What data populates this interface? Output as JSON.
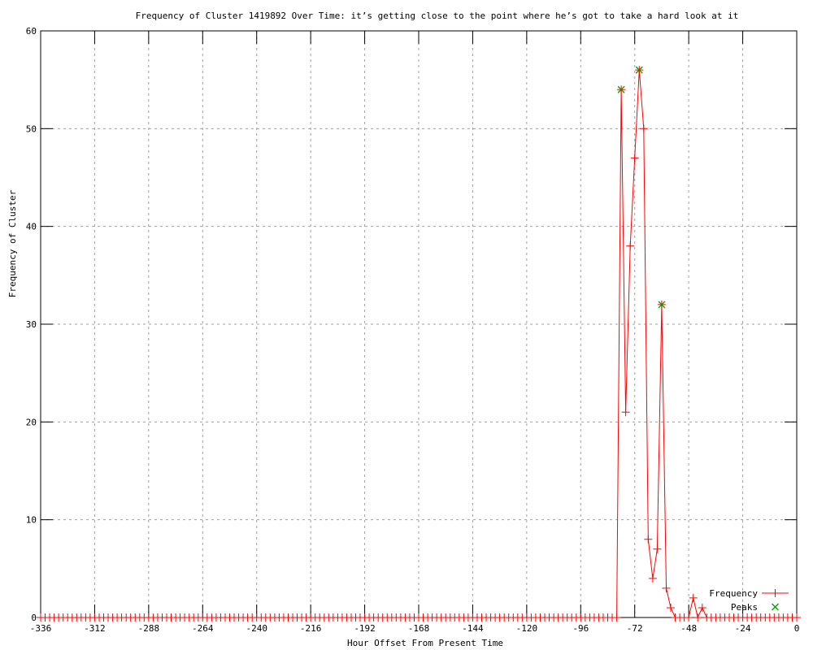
{
  "colors": {
    "background": "#ffffff",
    "axis": "#000000",
    "grid": "#a0a0a0",
    "frequency_series": "#ff0000",
    "peaks_series": "#00a000"
  },
  "chart_data": {
    "type": "line",
    "title": "Frequency of Cluster 1419892 Over Time: it’s getting close to the point where he’s got to take a hard look at it",
    "xlabel": "Hour Offset From Present Time",
    "ylabel": "Frequency of Cluster",
    "xlim": [
      -336,
      0
    ],
    "ylim": [
      0,
      60
    ],
    "x_ticks": [
      -336,
      -312,
      -288,
      -264,
      -240,
      -216,
      -192,
      -168,
      -144,
      -120,
      -96,
      -72,
      -48,
      -24,
      0
    ],
    "y_ticks": [
      0,
      10,
      20,
      30,
      40,
      50,
      60
    ],
    "grid": true,
    "legend_position": "inside-bottom-right",
    "series": [
      {
        "name": "Frequency",
        "color": "#ff0000",
        "marker": "plus",
        "x_start": -336,
        "x_end": 0,
        "x_step": 2,
        "default_value": 0,
        "nonzero_values": {
          "-78": 54,
          "-76": 21,
          "-74": 38,
          "-72": 47,
          "-70": 56,
          "-68": 50,
          "-66": 8,
          "-64": 4,
          "-62": 7,
          "-60": 32,
          "-58": 3,
          "-56": 1,
          "-46": 2,
          "-42": 1
        }
      },
      {
        "name": "Peaks",
        "color": "#00a000",
        "marker": "x",
        "points": [
          [
            -78,
            54
          ],
          [
            -70,
            56
          ],
          [
            -60,
            32
          ]
        ]
      }
    ]
  }
}
